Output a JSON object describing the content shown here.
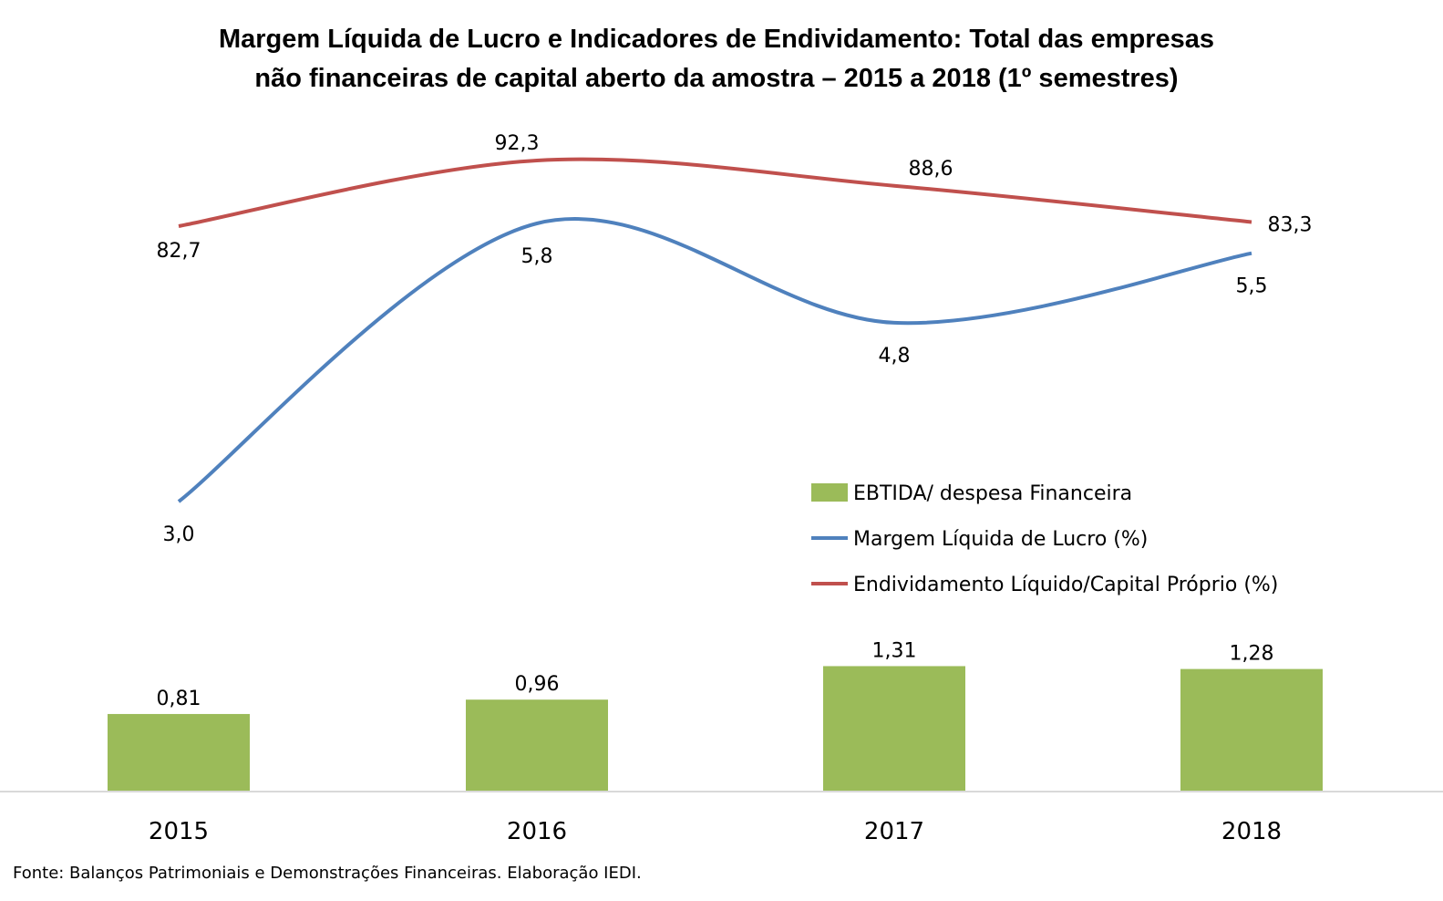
{
  "chart_data": {
    "type": "bar",
    "title_lines": [
      "Margem Líquida de Lucro e Indicadores de Endividamento: Total das empresas",
      "não financeiras de capital aberto da amostra – 2015 a 2018 (1º semestres)"
    ],
    "categories": [
      "2015",
      "2016",
      "2017",
      "2018"
    ],
    "series": [
      {
        "name": "EBTIDA/ despesa Financeira",
        "type": "bar",
        "color": "#9BBB59",
        "values": [
          0.81,
          0.96,
          1.31,
          1.28
        ],
        "labels": [
          "0,81",
          "0,96",
          "1,31",
          "1,28"
        ]
      },
      {
        "name": "Margem Líquida de Lucro (%)",
        "type": "line",
        "color": "#4F81BD",
        "values": [
          3.0,
          5.8,
          4.8,
          5.5
        ],
        "labels": [
          "3,0",
          "5,8",
          "4,8",
          "5,5"
        ]
      },
      {
        "name": "Endividamento Líquido/Capital Próprio (%)",
        "type": "line",
        "color": "#C0504D",
        "values": [
          82.7,
          92.3,
          88.6,
          83.3
        ],
        "labels": [
          "82,7",
          "92,3",
          "88,6",
          "83,3"
        ]
      }
    ],
    "legend_position": "right",
    "grid": false,
    "source": "Fonte: Balanços Patrimoniais e Demonstrações Financeiras. Elaboração IEDI."
  }
}
